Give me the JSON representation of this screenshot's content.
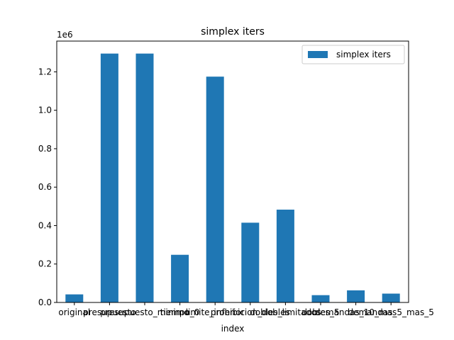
{
  "chart_data": {
    "type": "bar",
    "title": "simplex iters",
    "xlabel": "index",
    "ylabel": "",
    "scale_label": "1e6",
    "categories": [
      "original",
      "presupuesto",
      "presupuesto_minimo",
      "tiempo_0",
      "limite_inferior",
      "prohibicion_dobles",
      "dobles_limitados",
      "dobles_5",
      "demandas_10_mas",
      "demandas_5_mas_5"
    ],
    "series": [
      {
        "name": "simplex iters",
        "color": "#1f77b4",
        "values": [
          42000,
          1295000,
          1295000,
          248000,
          1175000,
          415000,
          483000,
          38000,
          63000,
          46000
        ]
      }
    ],
    "ylim": [
      0,
      1360000
    ],
    "yticks": [
      0,
      200000,
      400000,
      600000,
      800000,
      1000000,
      1200000
    ],
    "ytick_labels": [
      "0.0",
      "0.2",
      "0.4",
      "0.6",
      "0.8",
      "1.0",
      "1.2"
    ],
    "legend": "top-right",
    "grid": false
  }
}
